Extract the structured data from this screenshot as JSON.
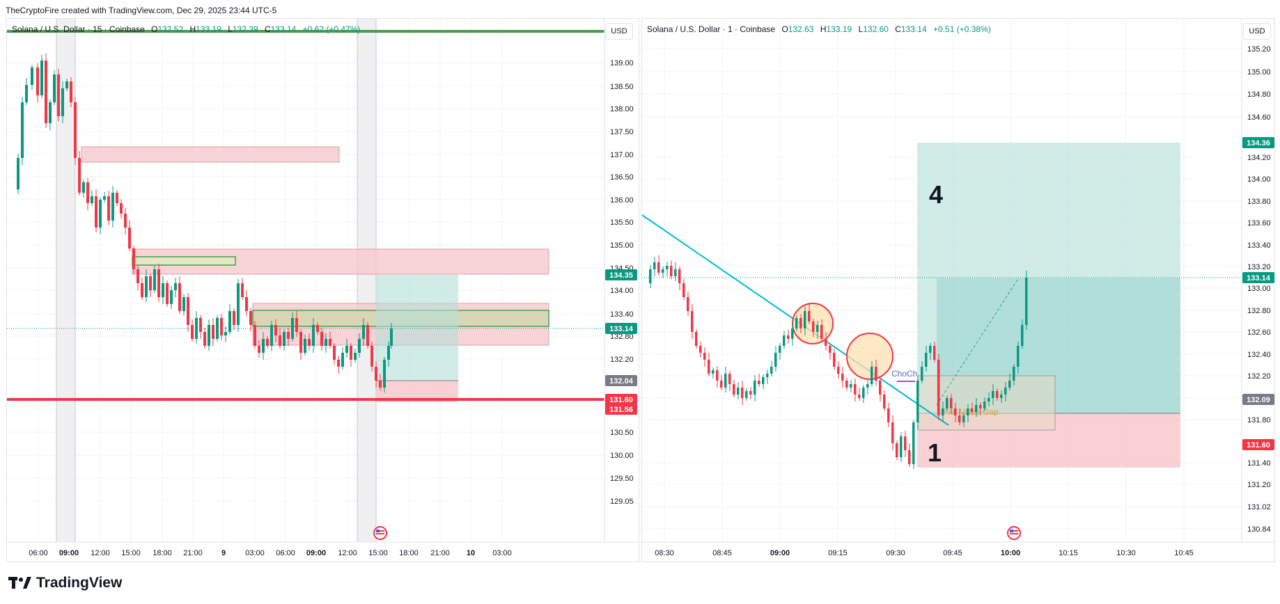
{
  "caption": "TheCryptoFire created with TradingView.com, Dec 29, 2025 23:44 UTC-5",
  "brand": "TradingView",
  "colors": {
    "up": "#089981",
    "down": "#f23645",
    "grid": "#f0f3fa",
    "axis_text": "#131722"
  },
  "left": {
    "symbol": "Solana / U.S. Dollar · 15 · Coinbase",
    "O": "132.52",
    "H": "133.19",
    "L": "132.39",
    "C": "133.14",
    "change": "+0.62 (+0.47%)",
    "currency": "USD",
    "y_ticks": [
      "139.00",
      "138.50",
      "138.00",
      "137.50",
      "137.00",
      "136.50",
      "136.00",
      "135.50",
      "135.00",
      "134.50",
      "134.00",
      "133.40",
      "132.80",
      "132.20",
      "131.00",
      "130.50",
      "130.00",
      "129.50",
      "129.05"
    ],
    "x_ticks": [
      "06:00",
      "09:00",
      "12:00",
      "15:00",
      "18:00",
      "21:00",
      "9",
      "03:00",
      "06:00",
      "09:00",
      "12:00",
      "15:00",
      "18:00",
      "21:00",
      "10",
      "03:00"
    ],
    "price_tags": [
      {
        "text": "134.35",
        "color": "#089981"
      },
      {
        "text": "133.14",
        "color": "#089981"
      },
      {
        "text": "132.04",
        "color": "#787b86"
      },
      {
        "text": "131.60",
        "color": "#f23645"
      },
      {
        "text": "131.56",
        "color": "#f23645"
      }
    ]
  },
  "right": {
    "symbol": "Solana / U.S. Dollar · 1 · Coinbase",
    "O": "132.63",
    "H": "133.19",
    "L": "132.60",
    "C": "133.14",
    "change": "+0.51 (+0.38%)",
    "currency": "USD",
    "y_ticks": [
      "135.20",
      "135.00",
      "134.80",
      "134.60",
      "134.20",
      "134.00",
      "133.80",
      "133.60",
      "133.40",
      "133.20",
      "133.00",
      "132.80",
      "132.60",
      "132.40",
      "132.20",
      "132.00",
      "131.80",
      "131.40",
      "131.20",
      "131.02",
      "130.84"
    ],
    "x_ticks": [
      "08:30",
      "08:45",
      "09:00",
      "09:15",
      "09:30",
      "09:45",
      "10:00",
      "10:15",
      "10:30",
      "10:45"
    ],
    "price_tags": [
      {
        "text": "134.36",
        "color": "#089981"
      },
      {
        "text": "133.14",
        "color": "#089981"
      },
      {
        "text": "132.09",
        "color": "#787b86"
      },
      {
        "text": "131.60",
        "color": "#f23645"
      }
    ],
    "annotations": {
      "target_label": "4",
      "stop_label": "1",
      "choch_label": "ChoCh",
      "fvg_label": "Fair Value Gap"
    }
  }
}
